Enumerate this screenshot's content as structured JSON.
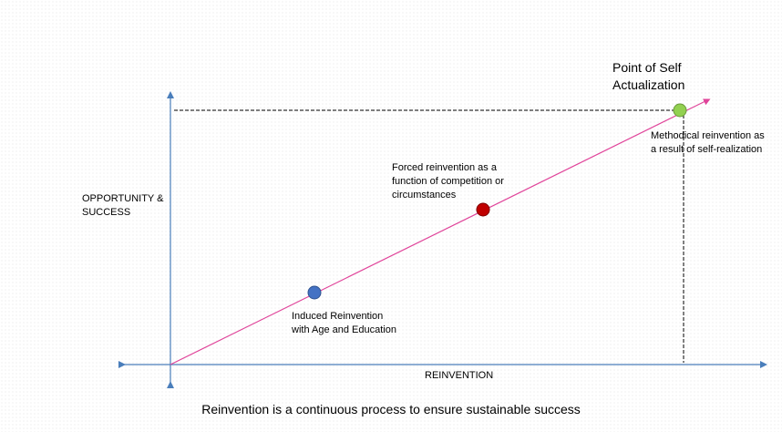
{
  "diagram": {
    "y_axis_label": [
      "OPPORTUNITY &",
      "SUCCESS"
    ],
    "x_axis_label": "REINVENTION",
    "caption": "Reinvention is a continuous process to ensure sustainable success",
    "peak_title": [
      "Point of Self",
      "Actualization"
    ],
    "stages": [
      {
        "name": "induced",
        "color": "#4472c4",
        "text": [
          "Induced Reinvention",
          "with Age and Education"
        ]
      },
      {
        "name": "forced",
        "color": "#c00000",
        "text": [
          "Forced reinvention as a",
          "function of competition or",
          "circumstances"
        ]
      },
      {
        "name": "methodical",
        "color": "#92d050",
        "text": [
          "Methodical reinvention as",
          "a result of self-realization"
        ]
      }
    ],
    "colors": {
      "axis": "#4a7ebb",
      "trend_line": "#e0449a",
      "guide_line": "#000000"
    }
  }
}
